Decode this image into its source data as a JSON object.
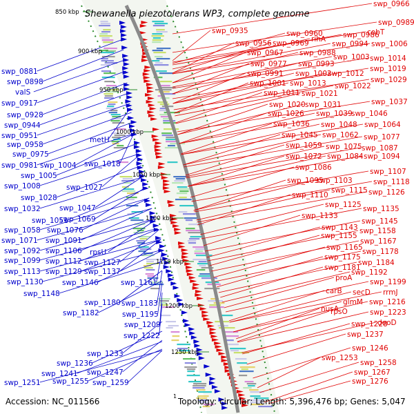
{
  "title": "Shewanella piezotolerans WP3, complete genome",
  "footer": {
    "accession": "Accession: NC_011566",
    "marker": "1",
    "summary": "Topology: circular; Length: 5,396,476 bp; Genes: 5,047"
  },
  "colors": {
    "left_genes": "#0000cc",
    "right_genes": "#e00000",
    "backbone": "#808080",
    "tick": "#2a8a2a"
  },
  "kbp_ticks": [
    "850 kbp",
    "900 kbp",
    "950 kbp",
    "1000 kbp",
    "1050 kbp",
    "1100 kbp",
    "1150 kbp",
    "1200 kbp",
    "1250 kbp"
  ],
  "left_labels": [
    "swp_0881",
    "swp_0898",
    "valS",
    "swp_0917",
    "swp_0928",
    "swp_0944",
    "swp_0951",
    "swp_0958",
    "swp_0975",
    "swp_0981",
    "swp_1004",
    "swp_1018",
    "metH",
    "swp_1005",
    "swp_1008",
    "swp_1027",
    "swp_1028",
    "swp_1047",
    "swp_1032",
    "swp_1051",
    "swp_1069",
    "swp_1058",
    "swp_1076",
    "swp_1071",
    "swp_1091",
    "swp_1092",
    "swp_1106",
    "rpsU",
    "swp_1099",
    "swp_1112",
    "swp_1127",
    "swp_1113",
    "swp_1129",
    "swp_1137",
    "swp_1130",
    "swp_1146",
    "swp_1161",
    "swp_1148",
    "swp_1180",
    "swp_1183",
    "swp_1182",
    "swp_1195",
    "swp_1209",
    "swp_1222",
    "swp_1233",
    "swp_1236",
    "swp_1241",
    "swp_1247",
    "swp_1251",
    "swp_1255",
    "swp_1259"
  ],
  "right_labels": [
    "swp_0966",
    "swp_0989",
    "swp_0935",
    "swp_0960",
    "cobT",
    "rihA",
    "swp_0986",
    "swp_0956",
    "swp_0969",
    "swp_0994",
    "swp_1006",
    "swp_0967",
    "swp_0988",
    "swp_1003",
    "swp_1014",
    "swp_0977",
    "swp_0993",
    "swp_1019",
    "swp_0991",
    "swp_1002",
    "swp_1012",
    "swp_1029",
    "swp_1001",
    "swp_1013",
    "swp_1022",
    "swp_1011",
    "swp_1021",
    "swp_1037",
    "swp_1020",
    "swp_1031",
    "swp_1026",
    "swp_1039",
    "swp_1046",
    "swp_1036",
    "swp_1048",
    "swp_1064",
    "swp_1045",
    "swp_1062",
    "swp_1077",
    "swp_1059",
    "swp_1075",
    "swp_1087",
    "swp_1072",
    "swp_1084",
    "swp_1094",
    "swp_1086",
    "swp_1107",
    "swp_1095",
    "swp_1103",
    "swp_1118",
    "swp_1115",
    "swp_1126",
    "swp_1110",
    "swp_1125",
    "swp_1135",
    "swp_1133",
    "swp_1145",
    "swp_1143",
    "swp_1158",
    "swp_1155",
    "swp_1167",
    "swp_1165",
    "swp_1178",
    "swp_1175",
    "swp_1184",
    "swp_1181",
    "swp_1192",
    "proA",
    "swp_1199",
    "carB",
    "secD",
    "rrmJ",
    "glmM",
    "swp_1216",
    "nusA",
    "rpsO",
    "swp_1223",
    "swp_1228",
    "deoD",
    "swp_1237",
    "swp_1246",
    "swp_1253",
    "swp_1258",
    "swp_1267",
    "swp_1276"
  ]
}
